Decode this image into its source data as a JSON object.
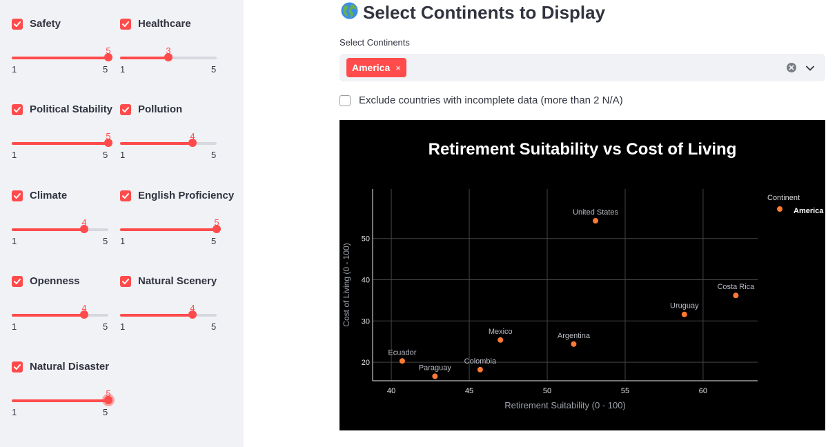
{
  "sidebar": {
    "filters": [
      {
        "label": "Safety",
        "checked": true,
        "value": 5,
        "min": 1,
        "max": 5
      },
      {
        "label": "Healthcare",
        "checked": true,
        "value": 3,
        "min": 1,
        "max": 5
      },
      {
        "label": "Political Stability",
        "checked": true,
        "value": 5,
        "min": 1,
        "max": 5
      },
      {
        "label": "Pollution",
        "checked": true,
        "value": 4,
        "min": 1,
        "max": 5
      },
      {
        "label": "Climate",
        "checked": true,
        "value": 4,
        "min": 1,
        "max": 5
      },
      {
        "label": "English Proficiency",
        "checked": true,
        "value": 5,
        "min": 1,
        "max": 5
      },
      {
        "label": "Openness",
        "checked": true,
        "value": 4,
        "min": 1,
        "max": 5
      },
      {
        "label": "Natural Scenery",
        "checked": true,
        "value": 4,
        "min": 1,
        "max": 5
      },
      {
        "label": "Natural Disaster",
        "checked": true,
        "value": 5,
        "min": 1,
        "max": 5
      }
    ]
  },
  "main": {
    "title_icon": "🌍",
    "title": "Select Continents to Display",
    "multiselect": {
      "label": "Select Continents",
      "selected": [
        "America"
      ],
      "remove_glyph": "×"
    },
    "exclude_checkbox": {
      "label": "Exclude countries with incomplete data (more than 2 N/A)",
      "checked": false
    }
  },
  "colors": {
    "accent": "#ff4b4b",
    "sidebar_bg": "#f0f2f6",
    "text": "#31333f",
    "chart_bg": "#000000",
    "marker": "#ff7a33"
  },
  "icons": {
    "checkbox": "check-icon",
    "clear": "clear-circle-icon",
    "dropdown": "chevron-down-icon",
    "globe": "globe-icon"
  },
  "chart_data": {
    "type": "scatter",
    "title": "Retirement Suitability vs Cost of Living",
    "xlabel": "Retirement Suitability (0 - 100)",
    "ylabel": "Cost of Living (0 - 100)",
    "xlim": [
      38.8,
      63.5
    ],
    "ylim": [
      15.5,
      62
    ],
    "xticks": [
      40,
      45,
      50,
      55,
      60
    ],
    "yticks": [
      20,
      30,
      40,
      50
    ],
    "grid": true,
    "legend": {
      "title": "Continent",
      "position": "top-right"
    },
    "series": [
      {
        "name": "America",
        "points": [
          {
            "label": "United States",
            "x": 53.1,
            "y": 54.3
          },
          {
            "label": "Costa Rica",
            "x": 62.1,
            "y": 36.2
          },
          {
            "label": "Uruguay",
            "x": 58.8,
            "y": 31.6
          },
          {
            "label": "Mexico",
            "x": 47.0,
            "y": 25.4
          },
          {
            "label": "Argentina",
            "x": 51.7,
            "y": 24.4
          },
          {
            "label": "Ecuador",
            "x": 40.7,
            "y": 20.3
          },
          {
            "label": "Colombia",
            "x": 45.7,
            "y": 18.2
          },
          {
            "label": "Paraguay",
            "x": 42.8,
            "y": 16.6
          }
        ]
      }
    ]
  }
}
